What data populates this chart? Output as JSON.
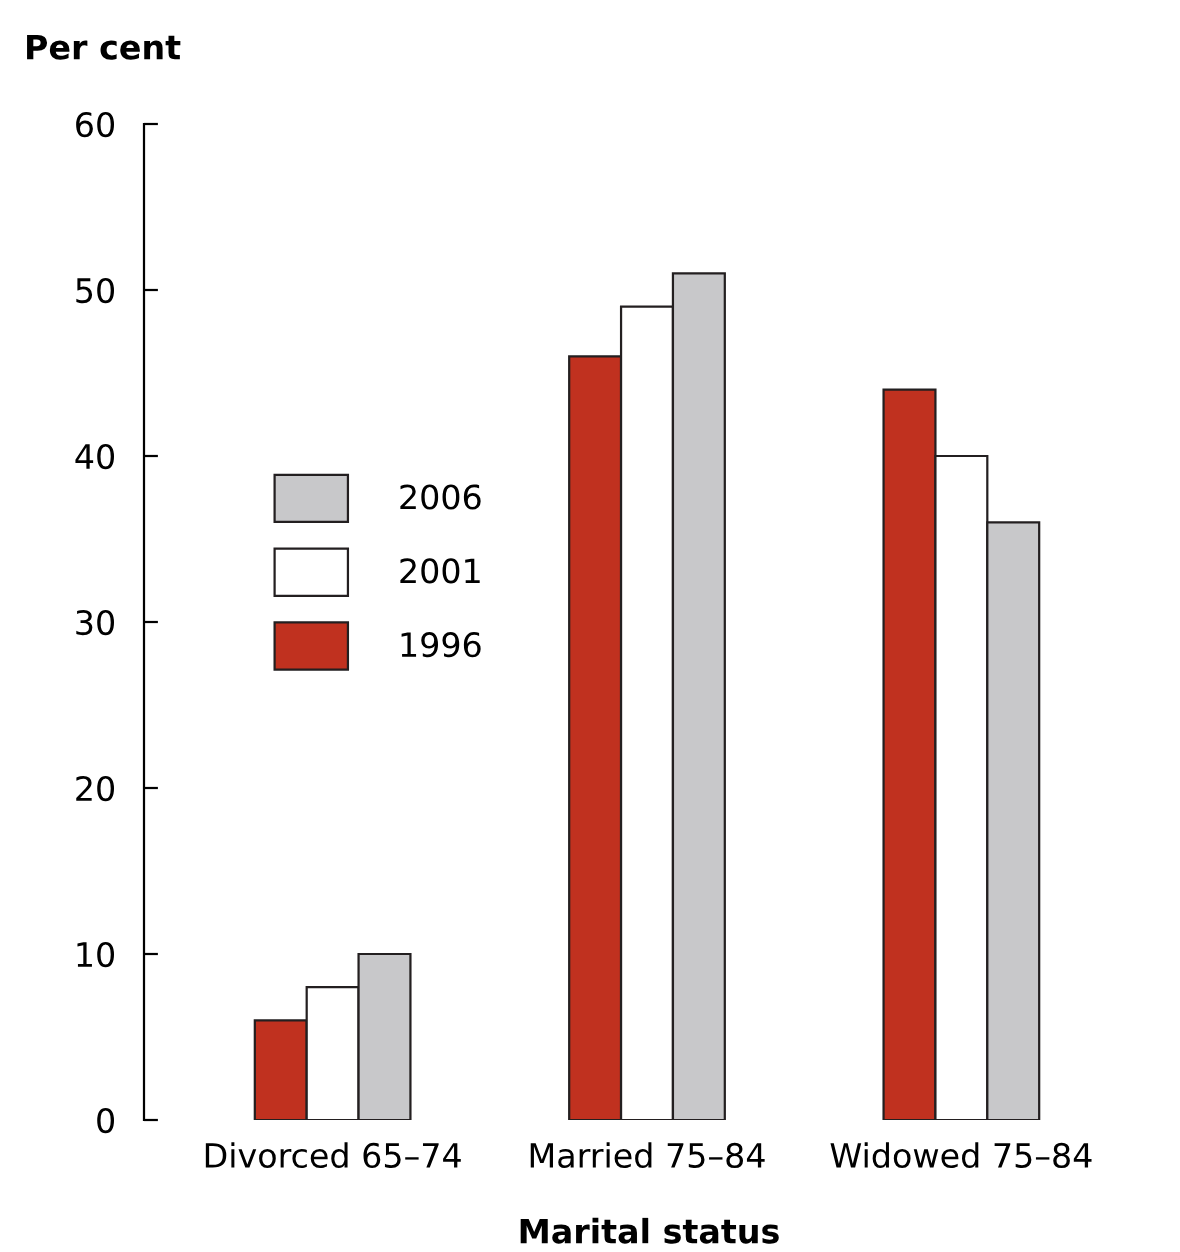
{
  "chart_data": {
    "type": "bar",
    "ylabel": "Per cent",
    "xlabel": "Marital status",
    "categories": [
      "Divorced 65–74",
      "Married 75–84",
      "Widowed 75–84"
    ],
    "series": [
      {
        "name": "1996",
        "color": "#c0311f",
        "values": [
          6,
          46,
          44
        ]
      },
      {
        "name": "2001",
        "color": "#ffffff",
        "values": [
          8,
          49,
          40
        ]
      },
      {
        "name": "2006",
        "color": "#c8c8ca",
        "values": [
          10,
          51,
          36
        ]
      }
    ],
    "ylim": [
      0,
      60
    ],
    "yticks": [
      0,
      10,
      20,
      30,
      40,
      50,
      60
    ],
    "grid": false,
    "legend": "left"
  }
}
